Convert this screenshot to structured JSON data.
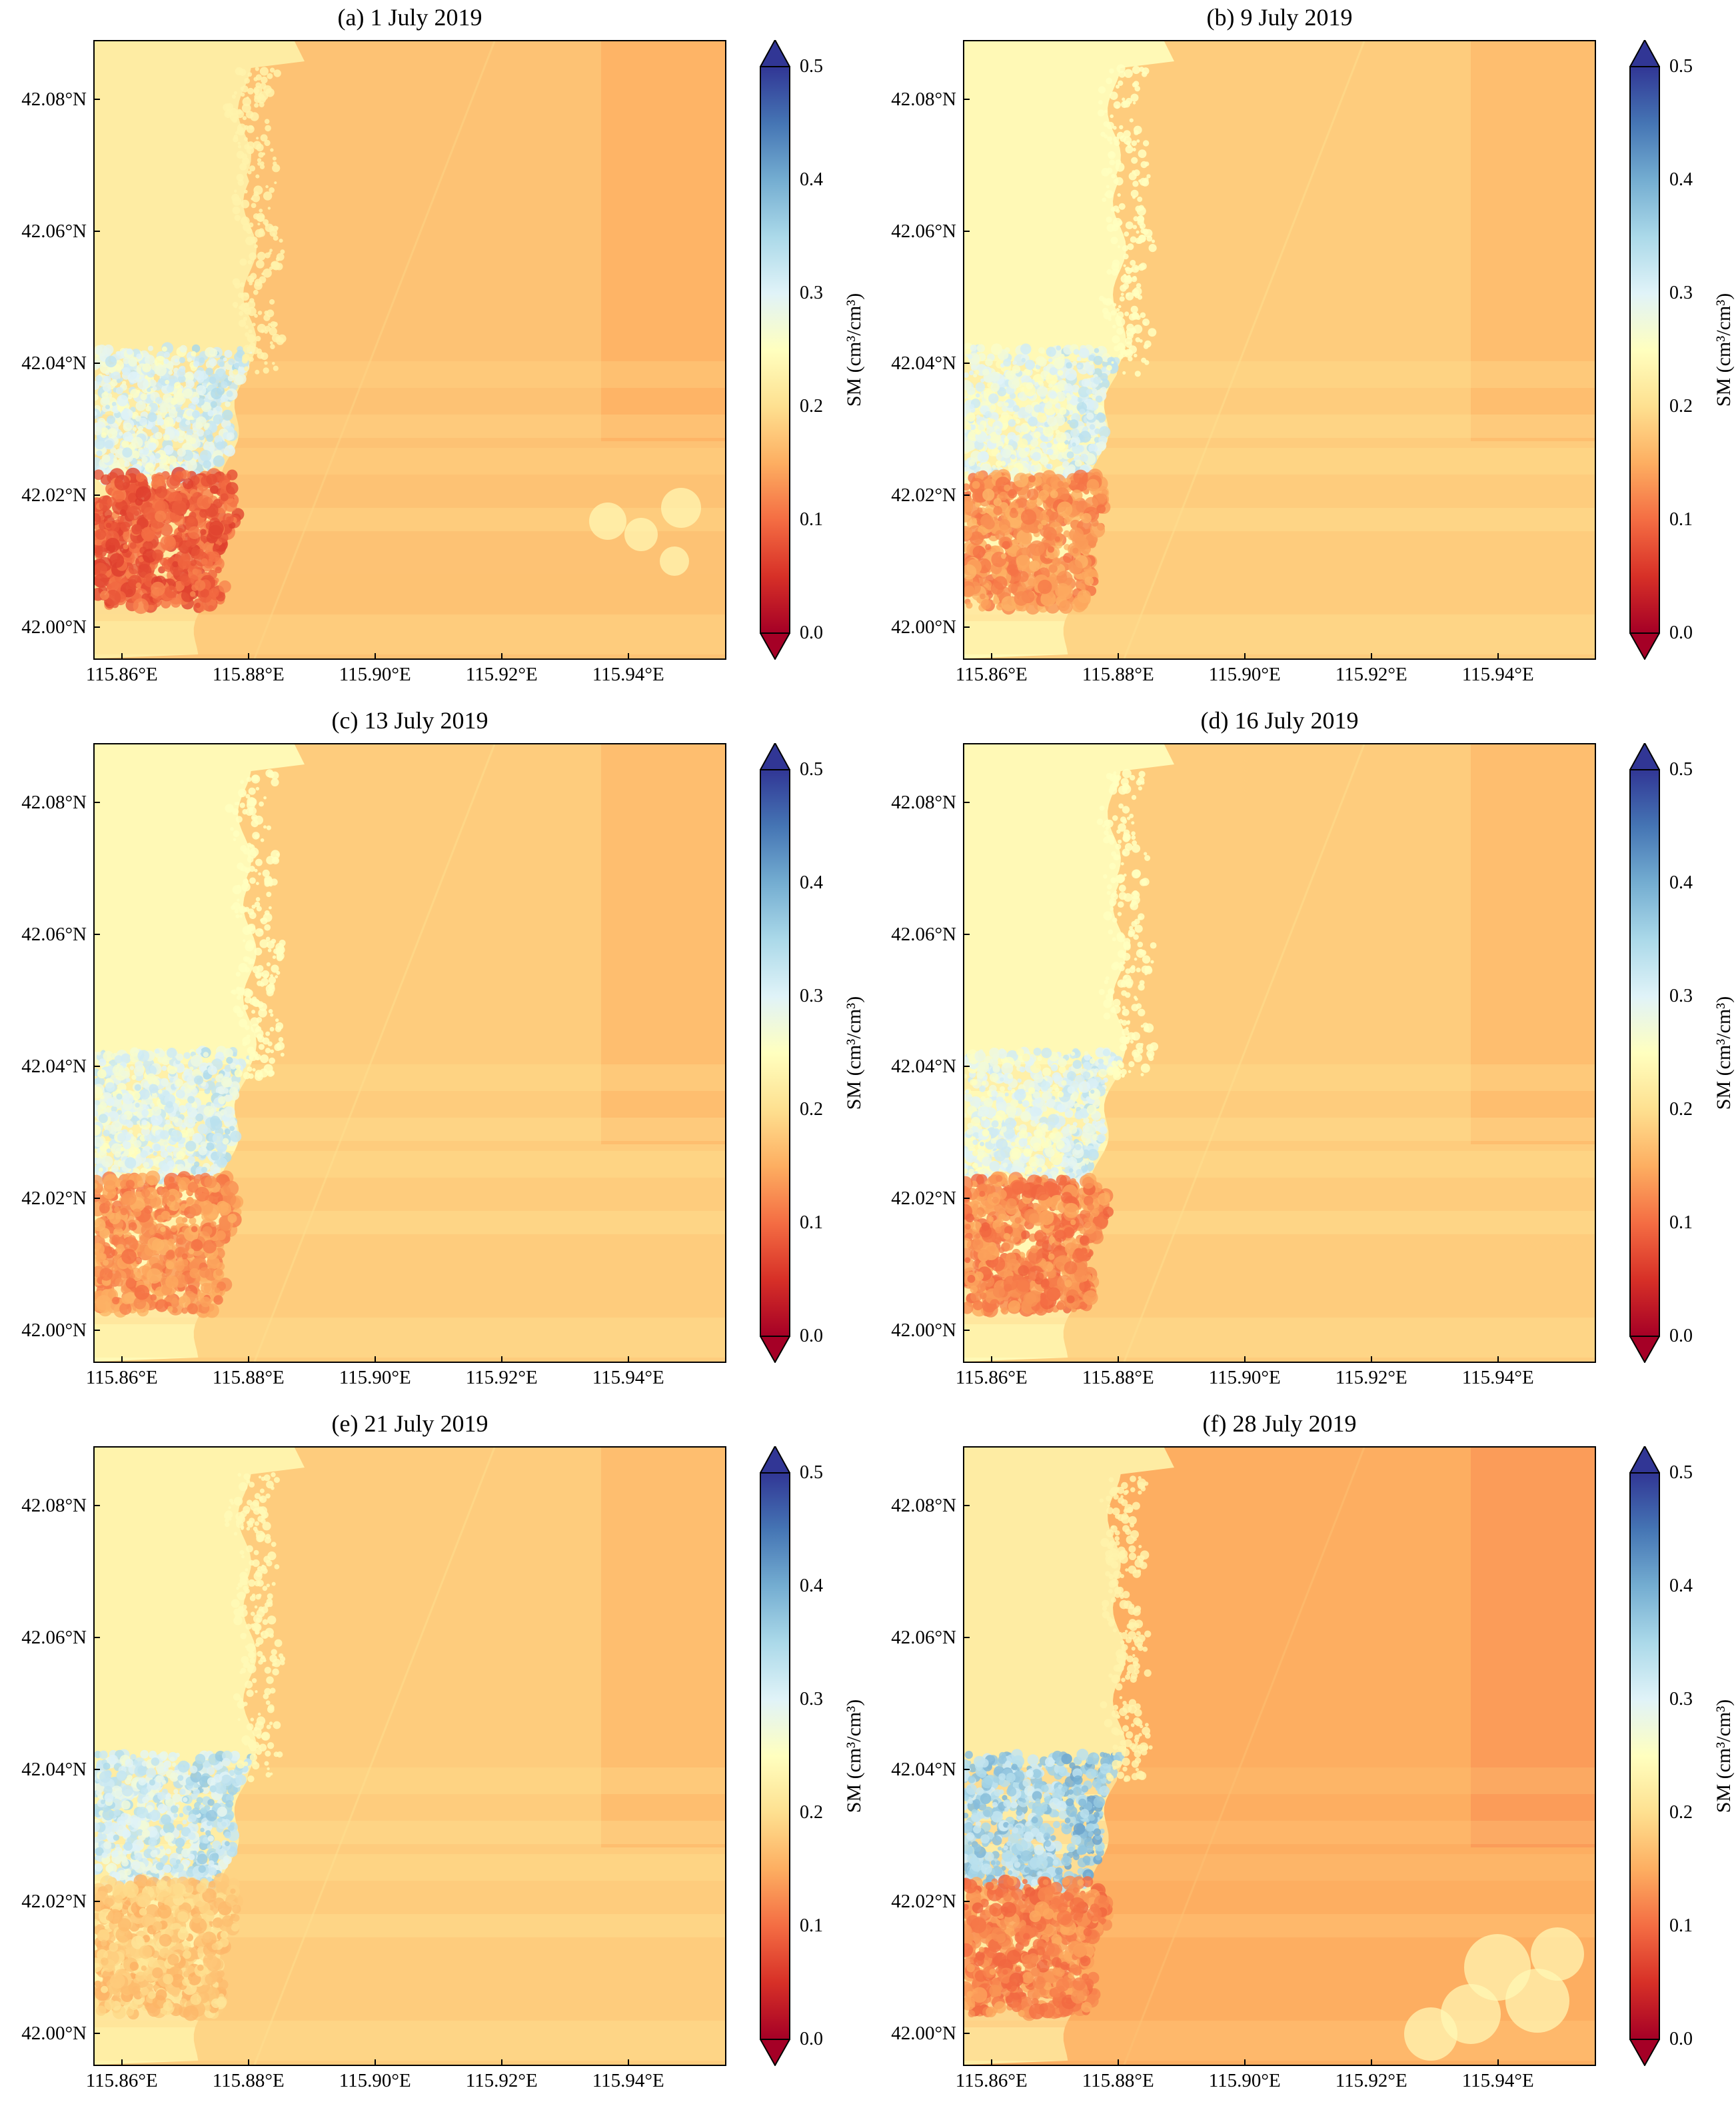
{
  "figure": {
    "panels": [
      {
        "title": "(a) 1 July 2019",
        "variant": 0
      },
      {
        "title": "(b) 9 July 2019",
        "variant": 1
      },
      {
        "title": "(c) 13 July 2019",
        "variant": 2
      },
      {
        "title": "(d) 16 July 2019",
        "variant": 3
      },
      {
        "title": "(e) 21 July 2019",
        "variant": 4
      },
      {
        "title": "(f) 28 July 2019",
        "variant": 5
      }
    ],
    "lat_ticks": [
      "42.08°N",
      "42.06°N",
      "42.04°N",
      "42.02°N",
      "42.00°N"
    ],
    "lat_values": [
      42.08,
      42.06,
      42.04,
      42.02,
      42.0
    ],
    "lat_range": [
      41.995,
      42.089
    ],
    "lon_ticks": [
      "115.86°E",
      "115.88°E",
      "115.90°E",
      "115.92°E",
      "115.94°E"
    ],
    "lon_values": [
      115.86,
      115.88,
      115.9,
      115.92,
      115.94
    ],
    "lon_range": [
      115.8555,
      115.9555
    ],
    "colorbar": {
      "label": "SM (cm³/cm³)",
      "ticks": [
        "0.5",
        "0.4",
        "0.3",
        "0.2",
        "0.1",
        "0.0"
      ],
      "tick_values": [
        0.5,
        0.4,
        0.3,
        0.2,
        0.1,
        0.0
      ],
      "range": [
        0.0,
        0.5
      ],
      "extend": "both",
      "colormap": "RdYlBu",
      "colors": [
        "#a50026",
        "#d73027",
        "#f46d43",
        "#fdae61",
        "#fee090",
        "#ffffbf",
        "#e0f3f8",
        "#abd9e9",
        "#74add1",
        "#4575b4",
        "#313695"
      ]
    }
  },
  "chart_data": {
    "type": "heatmap",
    "title": "",
    "xlabel": "",
    "ylabel": "",
    "x_range": [
      115.8555,
      115.9555
    ],
    "y_range": [
      41.995,
      42.089
    ],
    "colorbar_label": "SM (cm³/cm³)",
    "colorbar_range": [
      0.0,
      0.5
    ],
    "panels": [
      {
        "title": "(a) 1 July 2019",
        "west_background_sm": 0.22,
        "east_background_sm": 0.17,
        "wet_patch_sm": 0.29,
        "dry_patch_sm": 0.09
      },
      {
        "title": "(b) 9 July 2019",
        "west_background_sm": 0.24,
        "east_background_sm": 0.18,
        "wet_patch_sm": 0.28,
        "dry_patch_sm": 0.13
      },
      {
        "title": "(c) 13 July 2019",
        "west_background_sm": 0.24,
        "east_background_sm": 0.18,
        "wet_patch_sm": 0.29,
        "dry_patch_sm": 0.13
      },
      {
        "title": "(d) 16 July 2019",
        "west_background_sm": 0.24,
        "east_background_sm": 0.18,
        "wet_patch_sm": 0.28,
        "dry_patch_sm": 0.12
      },
      {
        "title": "(e) 21 July 2019",
        "west_background_sm": 0.23,
        "east_background_sm": 0.18,
        "wet_patch_sm": 0.31,
        "dry_patch_sm": 0.18
      },
      {
        "title": "(f) 28 July 2019",
        "west_background_sm": 0.22,
        "east_background_sm": 0.15,
        "wet_patch_sm": 0.35,
        "dry_patch_sm": 0.12
      }
    ]
  }
}
